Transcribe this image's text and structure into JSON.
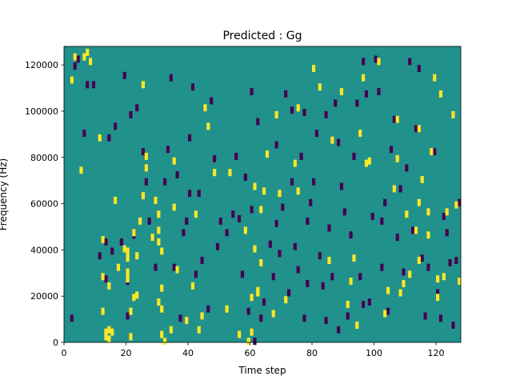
{
  "chart_data": {
    "type": "heatmap",
    "title": "Predicted : Gg",
    "xlabel": "Time step",
    "ylabel": "Frequency (Hz)",
    "xlim": [
      0,
      128
    ],
    "ylim": [
      0,
      128000
    ],
    "xticks": [
      0,
      20,
      40,
      60,
      80,
      100,
      120
    ],
    "yticks": [
      0,
      20000,
      40000,
      60000,
      80000,
      100000,
      120000
    ],
    "xtick_labels": [
      "0",
      "20",
      "40",
      "60",
      "80",
      "100",
      "120"
    ],
    "ytick_labels": [
      "0",
      "20000",
      "40000",
      "60000",
      "80000",
      "100000",
      "120000"
    ],
    "grid": false,
    "colors": {
      "background": "#21918c",
      "high": "#fde725",
      "low": "#440154"
    },
    "high_cells": [
      [
        2,
        114
      ],
      [
        3,
        124
      ],
      [
        5,
        75
      ],
      [
        6,
        124
      ],
      [
        7,
        126
      ],
      [
        8,
        122
      ],
      [
        11,
        89
      ],
      [
        12,
        45
      ],
      [
        12,
        29
      ],
      [
        12,
        14
      ],
      [
        13,
        5
      ],
      [
        13,
        3
      ],
      [
        14,
        2
      ],
      [
        14,
        6
      ],
      [
        14,
        25
      ],
      [
        15,
        5
      ],
      [
        16,
        62
      ],
      [
        17,
        33
      ],
      [
        19,
        41
      ],
      [
        20,
        40
      ],
      [
        20,
        37
      ],
      [
        20,
        31
      ],
      [
        20,
        28
      ],
      [
        21,
        3
      ],
      [
        21,
        14
      ],
      [
        22,
        48
      ],
      [
        22,
        20
      ],
      [
        23,
        38
      ],
      [
        23,
        21
      ],
      [
        24,
        53
      ],
      [
        25,
        64
      ],
      [
        25,
        112
      ],
      [
        26,
        81
      ],
      [
        26,
        76
      ],
      [
        28,
        46
      ],
      [
        29,
        62
      ],
      [
        30,
        56
      ],
      [
        30,
        49
      ],
      [
        30,
        44
      ],
      [
        30,
        18
      ],
      [
        31,
        40
      ],
      [
        31,
        24
      ],
      [
        31,
        15
      ],
      [
        31,
        4
      ],
      [
        32,
        1
      ],
      [
        34,
        6
      ],
      [
        35,
        79
      ],
      [
        35,
        59
      ],
      [
        36,
        32
      ],
      [
        39,
        10
      ],
      [
        41,
        25
      ],
      [
        42,
        56
      ],
      [
        43,
        6
      ],
      [
        44,
        12
      ],
      [
        45,
        102
      ],
      [
        46,
        94
      ],
      [
        48,
        74
      ],
      [
        52,
        15
      ],
      [
        53,
        74
      ],
      [
        56,
        4
      ],
      [
        58,
        49
      ],
      [
        59,
        1
      ],
      [
        60,
        5
      ],
      [
        60,
        20
      ],
      [
        61,
        41
      ],
      [
        61,
        68
      ],
      [
        62,
        22
      ],
      [
        62,
        23
      ],
      [
        63,
        35
      ],
      [
        63,
        58
      ],
      [
        64,
        66
      ],
      [
        65,
        82
      ],
      [
        67,
        13
      ],
      [
        68,
        99
      ],
      [
        69,
        65
      ],
      [
        71,
        19
      ],
      [
        74,
        78
      ],
      [
        75,
        66
      ],
      [
        75,
        102
      ],
      [
        80,
        119
      ],
      [
        82,
        111
      ],
      [
        85,
        36
      ],
      [
        86,
        88
      ],
      [
        89,
        109
      ],
      [
        91,
        17
      ],
      [
        92,
        27
      ],
      [
        93,
        37
      ],
      [
        94,
        8
      ],
      [
        95,
        91
      ],
      [
        96,
        115
      ],
      [
        97,
        78
      ],
      [
        98,
        79
      ],
      [
        101,
        122
      ],
      [
        103,
        13
      ],
      [
        104,
        23
      ],
      [
        106,
        67
      ],
      [
        107,
        80
      ],
      [
        107,
        97
      ],
      [
        108,
        22
      ],
      [
        109,
        26
      ],
      [
        110,
        56
      ],
      [
        111,
        30
      ],
      [
        113,
        49
      ],
      [
        114,
        36
      ],
      [
        114,
        61
      ],
      [
        114,
        93
      ],
      [
        115,
        71
      ],
      [
        117,
        47
      ],
      [
        117,
        57
      ],
      [
        118,
        83
      ],
      [
        119,
        115
      ],
      [
        120,
        20
      ],
      [
        120,
        28
      ],
      [
        121,
        108
      ],
      [
        122,
        29
      ],
      [
        123,
        57
      ],
      [
        125,
        99
      ],
      [
        126,
        60
      ],
      [
        127,
        27
      ]
    ],
    "low_cells": [
      [
        2,
        11
      ],
      [
        3,
        120
      ],
      [
        4,
        123
      ],
      [
        6,
        91
      ],
      [
        7,
        112
      ],
      [
        9,
        112
      ],
      [
        11,
        38
      ],
      [
        13,
        28
      ],
      [
        13,
        44
      ],
      [
        14,
        89
      ],
      [
        15,
        40
      ],
      [
        16,
        94
      ],
      [
        18,
        44
      ],
      [
        19,
        116
      ],
      [
        20,
        12
      ],
      [
        20,
        27
      ],
      [
        21,
        99
      ],
      [
        22,
        47
      ],
      [
        23,
        102
      ],
      [
        25,
        83
      ],
      [
        26,
        70
      ],
      [
        27,
        53
      ],
      [
        29,
        33
      ],
      [
        32,
        70
      ],
      [
        33,
        84
      ],
      [
        34,
        115
      ],
      [
        35,
        33
      ],
      [
        36,
        73
      ],
      [
        37,
        11
      ],
      [
        38,
        48
      ],
      [
        39,
        53
      ],
      [
        40,
        65
      ],
      [
        40,
        89
      ],
      [
        41,
        111
      ],
      [
        42,
        30
      ],
      [
        43,
        65
      ],
      [
        44,
        36
      ],
      [
        46,
        15
      ],
      [
        47,
        105
      ],
      [
        48,
        80
      ],
      [
        49,
        42
      ],
      [
        50,
        53
      ],
      [
        52,
        48
      ],
      [
        54,
        56
      ],
      [
        55,
        81
      ],
      [
        56,
        54
      ],
      [
        57,
        30
      ],
      [
        58,
        72
      ],
      [
        59,
        14
      ],
      [
        60,
        58
      ],
      [
        60,
        109
      ],
      [
        61,
        1
      ],
      [
        62,
        96
      ],
      [
        63,
        11
      ],
      [
        64,
        18
      ],
      [
        66,
        43
      ],
      [
        67,
        29
      ],
      [
        68,
        86
      ],
      [
        68,
        52
      ],
      [
        69,
        39
      ],
      [
        70,
        59
      ],
      [
        71,
        108
      ],
      [
        72,
        22
      ],
      [
        73,
        101
      ],
      [
        73,
        70
      ],
      [
        74,
        42
      ],
      [
        75,
        32
      ],
      [
        76,
        81
      ],
      [
        77,
        100
      ],
      [
        77,
        11
      ],
      [
        78,
        26
      ],
      [
        78,
        53
      ],
      [
        79,
        61
      ],
      [
        80,
        70
      ],
      [
        81,
        91
      ],
      [
        82,
        38
      ],
      [
        83,
        25
      ],
      [
        84,
        10
      ],
      [
        84,
        99
      ],
      [
        85,
        50
      ],
      [
        86,
        29
      ],
      [
        87,
        104
      ],
      [
        88,
        6
      ],
      [
        88,
        87
      ],
      [
        89,
        68
      ],
      [
        90,
        57
      ],
      [
        91,
        12
      ],
      [
        92,
        47
      ],
      [
        93,
        81
      ],
      [
        94,
        104
      ],
      [
        95,
        29
      ],
      [
        96,
        17
      ],
      [
        96,
        122
      ],
      [
        97,
        108
      ],
      [
        98,
        18
      ],
      [
        99,
        55
      ],
      [
        100,
        123
      ],
      [
        101,
        109
      ],
      [
        102,
        33
      ],
      [
        102,
        53
      ],
      [
        103,
        61
      ],
      [
        104,
        14
      ],
      [
        105,
        84
      ],
      [
        106,
        97
      ],
      [
        107,
        46
      ],
      [
        108,
        67
      ],
      [
        109,
        31
      ],
      [
        110,
        76
      ],
      [
        111,
        122
      ],
      [
        112,
        49
      ],
      [
        113,
        93
      ],
      [
        114,
        119
      ],
      [
        115,
        37
      ],
      [
        116,
        12
      ],
      [
        117,
        33
      ],
      [
        119,
        83
      ],
      [
        120,
        22
      ],
      [
        121,
        11
      ],
      [
        122,
        55
      ],
      [
        123,
        48
      ],
      [
        124,
        35
      ],
      [
        125,
        8
      ],
      [
        126,
        36
      ],
      [
        127,
        61
      ]
    ]
  }
}
